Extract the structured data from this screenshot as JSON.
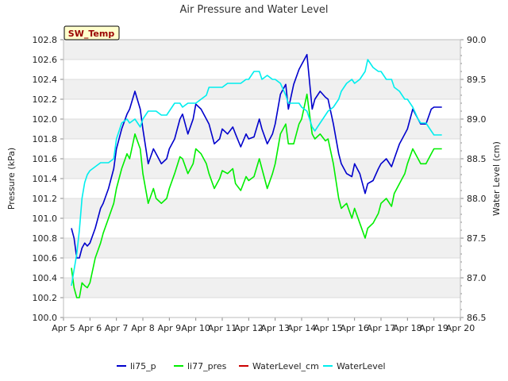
{
  "chart_data": {
    "type": "line",
    "title": "Air Pressure and Water Level",
    "badge": "SW_Temp",
    "xlabel": "",
    "ylabel": "Pressure (kPa)",
    "y2label": "Water Level (cm)",
    "xlim": [
      0,
      15
    ],
    "ylim": [
      100.0,
      102.8
    ],
    "y2lim": [
      86.5,
      90.0
    ],
    "xticks": [
      "Apr 5",
      "Apr 6",
      "Apr 7",
      "Apr 8",
      "Apr 9",
      "Apr 10",
      "Apr 11",
      "Apr 12",
      "Apr 13",
      "Apr 14",
      "Apr 15",
      "Apr 16",
      "Apr 17",
      "Apr 18",
      "Apr 19",
      "Apr 20"
    ],
    "yticks": [
      "100.0",
      "100.2",
      "100.4",
      "100.6",
      "100.8",
      "101.0",
      "101.2",
      "101.4",
      "101.6",
      "101.8",
      "102.0",
      "102.2",
      "102.4",
      "102.6",
      "102.8"
    ],
    "y2ticks": [
      "86.5",
      "87.0",
      "87.5",
      "88.0",
      "88.5",
      "89.0",
      "89.5",
      "90.0"
    ],
    "grid": true,
    "legend_position": "bottom",
    "series": [
      {
        "name": "li75_p",
        "color": "#0000cc",
        "axis": "left",
        "x": [
          0.3,
          0.4,
          0.5,
          0.6,
          0.7,
          0.8,
          0.9,
          1.0,
          1.2,
          1.4,
          1.5,
          1.7,
          1.9,
          2.0,
          2.2,
          2.4,
          2.5,
          2.7,
          2.9,
          3.0,
          3.2,
          3.4,
          3.5,
          3.7,
          3.9,
          4.0,
          4.2,
          4.4,
          4.5,
          4.7,
          4.9,
          5.0,
          5.2,
          5.4,
          5.5,
          5.7,
          5.9,
          6.0,
          6.2,
          6.4,
          6.5,
          6.7,
          6.9,
          7.0,
          7.2,
          7.4,
          7.5,
          7.7,
          7.9,
          8.0,
          8.2,
          8.4,
          8.5,
          8.7,
          8.9,
          9.0,
          9.2,
          9.4,
          9.5,
          9.7,
          9.9,
          10.0,
          10.2,
          10.4,
          10.5,
          10.7,
          10.9,
          11.0,
          11.2,
          11.4,
          11.5,
          11.7,
          11.9,
          12.0,
          12.2,
          12.4,
          12.5,
          12.7,
          12.9,
          13.0,
          13.2,
          13.4,
          13.5,
          13.7,
          13.9,
          14.0,
          14.2,
          14.3
        ],
        "values": [
          100.9,
          100.8,
          100.6,
          100.6,
          100.7,
          100.75,
          100.72,
          100.75,
          100.9,
          101.1,
          101.15,
          101.3,
          101.5,
          101.7,
          101.9,
          102.05,
          102.1,
          102.28,
          102.1,
          101.9,
          101.55,
          101.7,
          101.65,
          101.55,
          101.6,
          101.7,
          101.8,
          102.0,
          102.05,
          101.85,
          102.0,
          102.15,
          102.1,
          102.0,
          101.95,
          101.75,
          101.8,
          101.9,
          101.85,
          101.92,
          101.85,
          101.72,
          101.85,
          101.8,
          101.82,
          102.0,
          101.9,
          101.75,
          101.85,
          101.95,
          102.25,
          102.35,
          102.1,
          102.35,
          102.5,
          102.55,
          102.65,
          102.1,
          102.2,
          102.28,
          102.22,
          102.2,
          101.95,
          101.65,
          101.55,
          101.45,
          101.42,
          101.55,
          101.45,
          101.25,
          101.35,
          101.38,
          101.5,
          101.55,
          101.6,
          101.52,
          101.6,
          101.75,
          101.85,
          101.9,
          102.1,
          102.0,
          101.95,
          101.95,
          102.1,
          102.12,
          102.12,
          102.12
        ]
      },
      {
        "name": "li77_pres",
        "color": "#00ee00",
        "axis": "left",
        "x": [
          0.3,
          0.4,
          0.5,
          0.6,
          0.7,
          0.8,
          0.9,
          1.0,
          1.2,
          1.4,
          1.5,
          1.7,
          1.9,
          2.0,
          2.2,
          2.4,
          2.5,
          2.7,
          2.9,
          3.0,
          3.2,
          3.4,
          3.5,
          3.7,
          3.9,
          4.0,
          4.2,
          4.4,
          4.5,
          4.7,
          4.9,
          5.0,
          5.2,
          5.4,
          5.5,
          5.7,
          5.9,
          6.0,
          6.2,
          6.4,
          6.5,
          6.7,
          6.9,
          7.0,
          7.2,
          7.4,
          7.5,
          7.7,
          7.9,
          8.0,
          8.2,
          8.4,
          8.5,
          8.7,
          8.9,
          9.0,
          9.2,
          9.4,
          9.5,
          9.7,
          9.9,
          10.0,
          10.2,
          10.4,
          10.5,
          10.7,
          10.9,
          11.0,
          11.2,
          11.4,
          11.5,
          11.7,
          11.9,
          12.0,
          12.2,
          12.4,
          12.5,
          12.7,
          12.9,
          13.0,
          13.2,
          13.4,
          13.5,
          13.7,
          13.9,
          14.0,
          14.2,
          14.3
        ],
        "values": [
          100.5,
          100.3,
          100.2,
          100.2,
          100.35,
          100.32,
          100.3,
          100.35,
          100.6,
          100.75,
          100.85,
          101.0,
          101.15,
          101.3,
          101.5,
          101.65,
          101.6,
          101.85,
          101.7,
          101.45,
          101.15,
          101.3,
          101.2,
          101.15,
          101.2,
          101.3,
          101.45,
          101.62,
          101.6,
          101.45,
          101.55,
          101.7,
          101.65,
          101.55,
          101.45,
          101.3,
          101.4,
          101.48,
          101.45,
          101.5,
          101.35,
          101.28,
          101.42,
          101.38,
          101.42,
          101.6,
          101.5,
          101.3,
          101.45,
          101.55,
          101.85,
          101.95,
          101.75,
          101.75,
          101.95,
          102.0,
          102.25,
          101.85,
          101.8,
          101.85,
          101.78,
          101.8,
          101.55,
          101.2,
          101.1,
          101.15,
          101.0,
          101.1,
          100.95,
          100.8,
          100.9,
          100.95,
          101.05,
          101.15,
          101.2,
          101.12,
          101.25,
          101.35,
          101.45,
          101.55,
          101.7,
          101.6,
          101.55,
          101.55,
          101.65,
          101.7,
          101.7,
          101.7
        ]
      },
      {
        "name": "WaterLevel_cm",
        "color": "#cc0000",
        "axis": "right",
        "x": [],
        "values": []
      },
      {
        "name": "WaterLevel",
        "color": "#00eeee",
        "axis": "right",
        "x": [
          0.3,
          0.4,
          0.5,
          0.6,
          0.7,
          0.8,
          0.9,
          1.0,
          1.2,
          1.4,
          1.5,
          1.7,
          1.9,
          2.0,
          2.2,
          2.4,
          2.5,
          2.7,
          2.9,
          3.0,
          3.2,
          3.4,
          3.5,
          3.7,
          3.9,
          4.0,
          4.2,
          4.4,
          4.5,
          4.7,
          4.9,
          5.0,
          5.2,
          5.4,
          5.5,
          5.7,
          5.9,
          6.0,
          6.2,
          6.4,
          6.5,
          6.7,
          6.9,
          7.0,
          7.2,
          7.4,
          7.5,
          7.7,
          7.9,
          8.0,
          8.2,
          8.4,
          8.5,
          8.7,
          8.9,
          9.0,
          9.2,
          9.4,
          9.5,
          9.7,
          9.9,
          10.0,
          10.2,
          10.4,
          10.5,
          10.7,
          10.9,
          11.0,
          11.2,
          11.4,
          11.5,
          11.7,
          11.9,
          12.0,
          12.2,
          12.4,
          12.5,
          12.7,
          12.9,
          13.0,
          13.2,
          13.4,
          13.5,
          13.7,
          13.9,
          14.0,
          14.2,
          14.3
        ],
        "values": [
          86.9,
          87.1,
          87.3,
          87.6,
          88.0,
          88.2,
          88.3,
          88.35,
          88.4,
          88.45,
          88.45,
          88.45,
          88.5,
          88.75,
          88.95,
          89.0,
          88.95,
          89.0,
          88.9,
          89.0,
          89.1,
          89.1,
          89.1,
          89.05,
          89.05,
          89.1,
          89.2,
          89.2,
          89.15,
          89.2,
          89.2,
          89.2,
          89.25,
          89.3,
          89.4,
          89.4,
          89.4,
          89.4,
          89.45,
          89.45,
          89.45,
          89.45,
          89.5,
          89.5,
          89.6,
          89.6,
          89.5,
          89.55,
          89.5,
          89.5,
          89.45,
          89.3,
          89.2,
          89.2,
          89.2,
          89.15,
          89.1,
          88.9,
          88.85,
          88.95,
          89.05,
          89.1,
          89.15,
          89.25,
          89.35,
          89.45,
          89.5,
          89.45,
          89.5,
          89.6,
          89.75,
          89.65,
          89.6,
          89.6,
          89.5,
          89.5,
          89.4,
          89.35,
          89.25,
          89.25,
          89.15,
          89.0,
          88.95,
          88.95,
          88.85,
          88.8,
          88.8,
          88.8
        ]
      }
    ]
  }
}
